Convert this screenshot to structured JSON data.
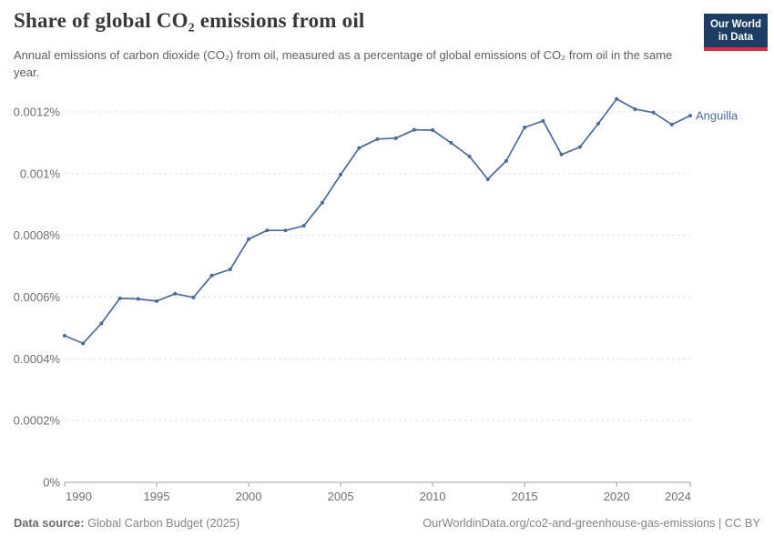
{
  "header": {
    "title": "Share of global CO₂ emissions from oil",
    "subtitle": "Annual emissions of carbon dioxide (CO₂) from oil, measured as a percentage of global emissions of CO₂ from oil in the same year.",
    "logo": {
      "line1": "Our World",
      "line2": "in Data"
    }
  },
  "chart_data": {
    "type": "line",
    "title": "Share of global CO₂ emissions from oil",
    "xlabel": "",
    "ylabel": "",
    "xlim": [
      1990,
      2024
    ],
    "ylim": [
      0,
      0.0012
    ],
    "grid": "horizontal-dashed",
    "legend_position": "end-of-line-label",
    "x_ticks": [
      1990,
      1995,
      2000,
      2005,
      2010,
      2015,
      2020,
      2024
    ],
    "y_ticks": [
      {
        "value": 0,
        "label": "0%"
      },
      {
        "value": 0.0002,
        "label": "0.0002%"
      },
      {
        "value": 0.0004,
        "label": "0.0004%"
      },
      {
        "value": 0.0006,
        "label": "0.0006%"
      },
      {
        "value": 0.0008,
        "label": "0.0008%"
      },
      {
        "value": 0.001,
        "label": "0.001%"
      },
      {
        "value": 0.0012,
        "label": "0.0012%"
      }
    ],
    "series": [
      {
        "name": "Anguilla",
        "color": "#4C6A9C",
        "unit": "%",
        "x": [
          1990,
          1991,
          1992,
          1993,
          1994,
          1995,
          1996,
          1997,
          1998,
          1999,
          2000,
          2001,
          2002,
          2003,
          2004,
          2005,
          2006,
          2007,
          2008,
          2009,
          2010,
          2011,
          2012,
          2013,
          2014,
          2015,
          2016,
          2017,
          2018,
          2019,
          2020,
          2021,
          2022,
          2023,
          2024
        ],
        "values": [
          0.000475,
          0.00045,
          0.000515,
          0.000596,
          0.000594,
          0.000587,
          0.000611,
          0.000599,
          0.00067,
          0.00069,
          0.000788,
          0.000816,
          0.000816,
          0.000831,
          0.000906,
          0.000997,
          0.001083,
          0.001112,
          0.001115,
          0.001142,
          0.001141,
          0.0011,
          0.001056,
          0.000982,
          0.001041,
          0.00115,
          0.001171,
          0.001062,
          0.001086,
          0.001162,
          0.001242,
          0.001209,
          0.001198,
          0.001159,
          0.001188
        ]
      }
    ]
  },
  "footer": {
    "datasource_label": "Data source:",
    "datasource_value": "Global Carbon Budget (2025)",
    "credit": "OurWorldinData.org/co2-and-greenhouse-gas-emissions | CC BY"
  },
  "colors": {
    "line": "#4C6A9C",
    "gridline": "#e2e2e2",
    "axis": "#a3a3a3",
    "tick_label": "#6f6f6f",
    "title": "#383838",
    "subtitle": "#5e5e5e",
    "footer": "#858585",
    "logo_bg": "#1d3d63",
    "logo_red": "#d8304a"
  }
}
